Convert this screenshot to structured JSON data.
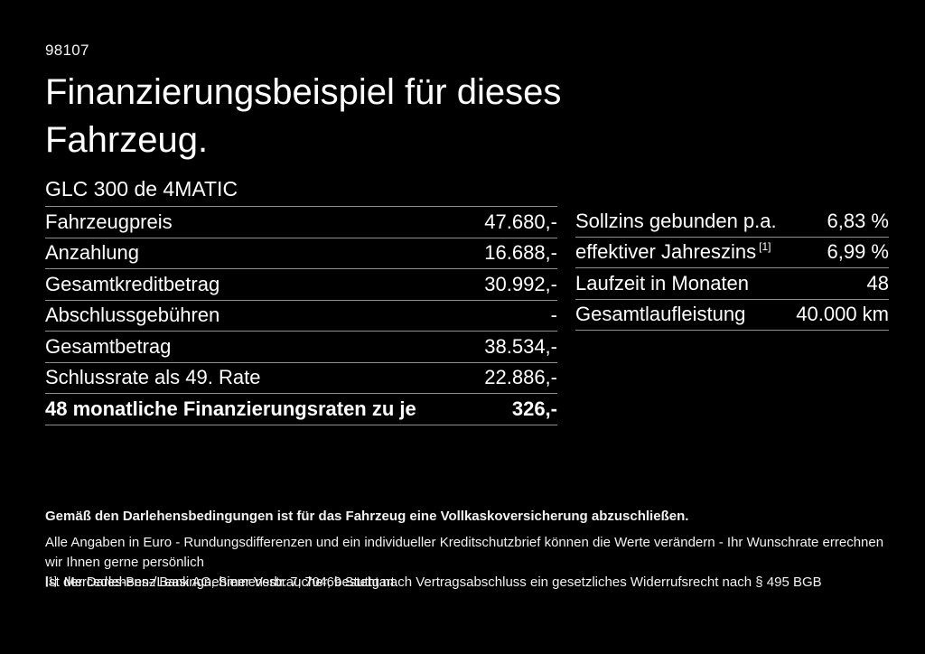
{
  "page": {
    "doc_id": "98107",
    "title": "Finanzierungsbeispiel für dieses Fahrzeug.",
    "vehicle_model": "GLC 300 de 4MATIC",
    "background_color": "#000000",
    "text_color": "#ffffff",
    "divider_color": "#8e8e8e"
  },
  "financing_table": {
    "rows": [
      {
        "label": "Fahrzeugpreis",
        "value": "47.680,-",
        "bold": false
      },
      {
        "label": "Anzahlung",
        "value": "16.688,-",
        "bold": false
      },
      {
        "label": "Gesamtkreditbetrag",
        "value": "30.992,-",
        "bold": false
      },
      {
        "label": "Abschlussgebühren",
        "value": "-",
        "bold": false
      },
      {
        "label": "Gesamtbetrag",
        "value": "38.534,-",
        "bold": false
      },
      {
        "label": "Schlussrate als 49. Rate",
        "value": "22.886,-",
        "bold": false
      },
      {
        "label": "48 monatliche Finanzierungsraten zu je",
        "value": "326,-",
        "bold": true
      }
    ]
  },
  "conditions_table": {
    "rows": [
      {
        "label": "Sollzins gebunden p.a.",
        "value": "6,83 %",
        "bold": false
      },
      {
        "label": "effektiver Jahreszins",
        "label_superscript": "[1]",
        "value": "6,99 %",
        "bold": false
      },
      {
        "label": "Laufzeit in Monaten",
        "value": "48",
        "bold": false
      },
      {
        "label": "Gesamtlaufleistung",
        "value": "40.000 km",
        "bold": false
      }
    ]
  },
  "disclaimer": {
    "line1": "Gemäß den Darlehensbedingungen ist für das Fahrzeug eine Vollkaskoversicherung abzuschließen.",
    "line2": "Alle Angaben in Euro - Rundungsdifferenzen und ein individueller Kreditschutzbrief können die Werte verändern - Ihr Wunschrate errechnen wir Ihnen gerne persönlich",
    "line3": "Ist der Darlehens-/Leasingnehmer Verbraucher, besteht nach Vertragsabschluss ein gesetzliches Widerrufsrecht nach § 495 BGB",
    "footnote_marker": "[1]",
    "footnote_text": "Mercedes-Benz Bank AG, Siemensstr. 7, 70469 Stuttgart."
  }
}
